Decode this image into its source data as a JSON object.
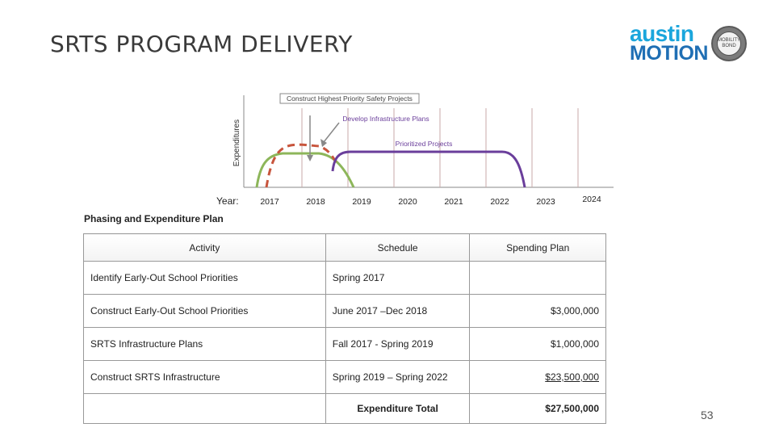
{
  "slide": {
    "title": "SRTS PROGRAM DELIVERY",
    "page_number": "53"
  },
  "logo": {
    "line1": "austin",
    "line2": "MOTION",
    "seal_text": "MOBILITY BOND",
    "colors": {
      "austin": "#1ba6dc",
      "motion": "#1f6fb4"
    }
  },
  "timeline": {
    "y_label": "Expenditures",
    "year_label": "Year:",
    "years": [
      "2017",
      "2018",
      "2019",
      "2020",
      "2021",
      "2022",
      "2023",
      "2024"
    ],
    "annotations": {
      "construct_highest": "Construct Highest Priority Safety Projects",
      "develop_plans": "Develop Infrastructure Plans",
      "prioritized": "Prioritized Projects"
    },
    "colors": {
      "green": "#8db65a",
      "red": "#c8553d",
      "purple": "#6a3e9b",
      "gridline": "#c9a9a9"
    }
  },
  "plan": {
    "caption": "Phasing and Expenditure Plan",
    "headers": {
      "activity": "Activity",
      "schedule": "Schedule",
      "spending": "Spending Plan"
    },
    "rows": [
      {
        "activity": "Identify Early-Out School Priorities",
        "schedule": "Spring 2017",
        "spending": ""
      },
      {
        "activity": "Construct Early-Out School Priorities",
        "schedule": "June 2017 –Dec 2018",
        "spending": "$3,000,000"
      },
      {
        "activity": "SRTS Infrastructure Plans",
        "schedule": "Fall 2017 - Spring 2019",
        "spending": "$1,000,000"
      },
      {
        "activity": "Construct SRTS Infrastructure",
        "schedule": "Spring 2019 – Spring 2022",
        "spending": "$23,500,000"
      }
    ],
    "total": {
      "label": "Expenditure Total",
      "value": "$27,500,000"
    }
  }
}
